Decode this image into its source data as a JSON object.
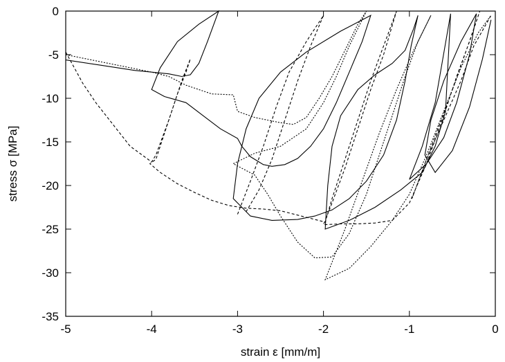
{
  "chart_data": {
    "type": "line",
    "title": "",
    "xlabel": "strain ε [mm/m]",
    "ylabel": "stress σ [MPa]",
    "xlim": [
      -5,
      0
    ],
    "ylim": [
      -35,
      0
    ],
    "xticks": [
      -5,
      -4,
      -3,
      -2,
      -1,
      0
    ],
    "yticks": [
      0,
      -5,
      -10,
      -15,
      -20,
      -25,
      -30,
      -35
    ],
    "grid": false,
    "legend": "none",
    "series": [
      {
        "style": "solid",
        "values": [
          [
            -5.0,
            -5.6
          ],
          [
            -4.6,
            -6.2
          ],
          [
            -4.2,
            -6.8
          ],
          [
            -3.8,
            -7.2
          ],
          [
            -3.65,
            -7.5
          ],
          [
            -3.55,
            -7.3
          ],
          [
            -3.45,
            -6.0
          ],
          [
            -3.35,
            -3.5
          ],
          [
            -3.22,
            0.0
          ],
          [
            -3.45,
            -1.5
          ],
          [
            -3.7,
            -3.5
          ],
          [
            -3.9,
            -6.5
          ],
          [
            -4.0,
            -9.0
          ],
          [
            -3.85,
            -9.8
          ],
          [
            -3.6,
            -10.5
          ],
          [
            -3.4,
            -12.0
          ],
          [
            -3.2,
            -13.5
          ],
          [
            -3.0,
            -14.6
          ],
          [
            -2.95,
            -15.5
          ],
          [
            -2.85,
            -16.7
          ],
          [
            -2.7,
            -17.6
          ],
          [
            -2.6,
            -17.8
          ],
          [
            -2.45,
            -17.6
          ],
          [
            -2.3,
            -16.9
          ],
          [
            -2.15,
            -15.5
          ],
          [
            -2.0,
            -13.5
          ],
          [
            -1.85,
            -10.5
          ],
          [
            -1.7,
            -7.0
          ],
          [
            -1.55,
            -3.5
          ],
          [
            -1.45,
            -0.5
          ],
          [
            -1.8,
            -2.3
          ],
          [
            -2.2,
            -4.7
          ],
          [
            -2.5,
            -7.0
          ],
          [
            -2.75,
            -10.0
          ],
          [
            -2.9,
            -13.5
          ],
          [
            -3.0,
            -17.5
          ],
          [
            -3.05,
            -21.5
          ],
          [
            -2.95,
            -22.5
          ],
          [
            -2.85,
            -23.5
          ],
          [
            -2.6,
            -24.0
          ],
          [
            -2.3,
            -23.9
          ],
          [
            -2.1,
            -23.5
          ],
          [
            -1.9,
            -22.8
          ],
          [
            -1.7,
            -21.5
          ],
          [
            -1.5,
            -19.5
          ],
          [
            -1.3,
            -16.5
          ],
          [
            -1.15,
            -12.5
          ],
          [
            -1.05,
            -8.0
          ],
          [
            -0.98,
            -4.0
          ],
          [
            -0.9,
            -0.5
          ],
          [
            -0.95,
            -2.0
          ],
          [
            -1.05,
            -4.5
          ],
          [
            -1.2,
            -6.0
          ],
          [
            -1.4,
            -7.3
          ],
          [
            -1.6,
            -9.0
          ],
          [
            -1.8,
            -12.0
          ],
          [
            -1.9,
            -15.5
          ],
          [
            -1.95,
            -20.0
          ],
          [
            -1.98,
            -25.0
          ],
          [
            -1.7,
            -24.0
          ],
          [
            -1.4,
            -22.5
          ],
          [
            -1.1,
            -20.5
          ],
          [
            -0.85,
            -18.5
          ],
          [
            -0.7,
            -15.5
          ],
          [
            -0.58,
            -11.5
          ],
          [
            -0.52,
            -0.3
          ],
          [
            -0.7,
            -10.5
          ],
          [
            -0.85,
            -15.5
          ],
          [
            -1.0,
            -19.3
          ],
          [
            -0.8,
            -17.5
          ],
          [
            -0.6,
            -14.5
          ],
          [
            -0.45,
            -10.5
          ],
          [
            -0.3,
            -5.0
          ],
          [
            -0.22,
            -0.3
          ],
          [
            -0.4,
            -3.5
          ],
          [
            -0.6,
            -8.0
          ],
          [
            -0.75,
            -12.5
          ],
          [
            -0.82,
            -16.5
          ],
          [
            -0.7,
            -18.5
          ],
          [
            -0.5,
            -16.0
          ],
          [
            -0.3,
            -11.0
          ],
          [
            -0.15,
            -5.5
          ],
          [
            -0.05,
            -1.0
          ]
        ]
      },
      {
        "style": "dashed",
        "values": [
          [
            -5.0,
            -4.7
          ],
          [
            -4.9,
            -6.5
          ],
          [
            -4.8,
            -8.3
          ],
          [
            -4.65,
            -10.5
          ],
          [
            -4.45,
            -13.0
          ],
          [
            -4.25,
            -15.5
          ],
          [
            -4.0,
            -17.3
          ],
          [
            -3.95,
            -16.5
          ],
          [
            -3.8,
            -12.5
          ],
          [
            -3.7,
            -9.5
          ],
          [
            -3.6,
            -7.0
          ],
          [
            -3.55,
            -5.5
          ],
          [
            -3.65,
            -8.0
          ],
          [
            -3.75,
            -11.0
          ],
          [
            -3.85,
            -14.0
          ],
          [
            -3.95,
            -17.0
          ],
          [
            -4.02,
            -17.5
          ],
          [
            -3.9,
            -18.5
          ],
          [
            -3.7,
            -19.8
          ],
          [
            -3.5,
            -20.8
          ],
          [
            -3.3,
            -21.7
          ],
          [
            -3.1,
            -22.3
          ],
          [
            -2.9,
            -22.6
          ],
          [
            -2.7,
            -22.7
          ],
          [
            -2.5,
            -22.9
          ],
          [
            -2.3,
            -23.4
          ],
          [
            -2.1,
            -23.9
          ],
          [
            -1.98,
            -24.2
          ],
          [
            -1.9,
            -21.5
          ],
          [
            -1.75,
            -17.0
          ],
          [
            -1.6,
            -12.5
          ],
          [
            -1.45,
            -8.0
          ],
          [
            -1.3,
            -4.0
          ],
          [
            -1.15,
            0.0
          ],
          [
            -1.3,
            -5.0
          ],
          [
            -1.45,
            -9.0
          ],
          [
            -1.6,
            -13.5
          ],
          [
            -1.75,
            -18.0
          ],
          [
            -1.9,
            -22.0
          ],
          [
            -2.0,
            -24.5
          ],
          [
            -1.8,
            -24.4
          ],
          [
            -1.6,
            -24.4
          ],
          [
            -1.4,
            -24.3
          ],
          [
            -1.2,
            -24.0
          ],
          [
            -1.0,
            -22.0
          ],
          [
            -0.8,
            -17.5
          ],
          [
            -0.6,
            -12.0
          ],
          [
            -0.45,
            -7.5
          ],
          [
            -0.3,
            -3.5
          ],
          [
            -0.18,
            0.0
          ],
          [
            -0.32,
            -4.0
          ],
          [
            -0.48,
            -8.5
          ],
          [
            -0.65,
            -13.0
          ],
          [
            -0.82,
            -17.5
          ],
          [
            -0.97,
            -21.5
          ],
          [
            -0.8,
            -17.0
          ],
          [
            -0.6,
            -12.5
          ],
          [
            -0.4,
            -8.0
          ],
          [
            -0.25,
            -4.0
          ],
          [
            -0.05,
            -0.5
          ]
        ]
      },
      {
        "style": "dashed",
        "values": [
          [
            -3.0,
            -23.3
          ],
          [
            -2.85,
            -19.5
          ],
          [
            -2.7,
            -15.5
          ],
          [
            -2.55,
            -11.0
          ],
          [
            -2.4,
            -7.0
          ],
          [
            -2.2,
            -3.5
          ],
          [
            -2.0,
            -0.5
          ],
          [
            -2.15,
            -4.0
          ],
          [
            -2.3,
            -8.0
          ],
          [
            -2.45,
            -12.5
          ],
          [
            -2.6,
            -17.0
          ],
          [
            -2.75,
            -20.5
          ],
          [
            -2.9,
            -23.0
          ]
        ]
      },
      {
        "style": "dotted",
        "values": [
          [
            -5.0,
            -5.0
          ],
          [
            -4.6,
            -5.8
          ],
          [
            -4.3,
            -6.4
          ],
          [
            -4.0,
            -7.0
          ],
          [
            -3.8,
            -7.5
          ],
          [
            -3.6,
            -8.5
          ],
          [
            -3.3,
            -9.5
          ],
          [
            -3.05,
            -9.6
          ],
          [
            -3.0,
            -11.5
          ],
          [
            -2.8,
            -12.2
          ],
          [
            -2.5,
            -12.8
          ],
          [
            -2.35,
            -13.0
          ],
          [
            -2.2,
            -12.2
          ],
          [
            -2.05,
            -10.0
          ],
          [
            -1.9,
            -7.5
          ],
          [
            -1.75,
            -4.5
          ],
          [
            -1.6,
            -1.5
          ],
          [
            -1.5,
            0.0
          ],
          [
            -1.7,
            -4.0
          ],
          [
            -1.85,
            -7.5
          ],
          [
            -2.0,
            -10.5
          ],
          [
            -2.2,
            -13.5
          ],
          [
            -2.5,
            -15.5
          ],
          [
            -2.8,
            -16.3
          ],
          [
            -3.05,
            -17.5
          ],
          [
            -2.8,
            -18.8
          ],
          [
            -2.65,
            -21.0
          ],
          [
            -2.5,
            -23.5
          ],
          [
            -2.3,
            -26.5
          ],
          [
            -2.1,
            -28.3
          ],
          [
            -1.9,
            -28.2
          ],
          [
            -1.7,
            -25.5
          ],
          [
            -1.5,
            -21.0
          ],
          [
            -1.35,
            -16.5
          ],
          [
            -1.2,
            -12.0
          ],
          [
            -1.05,
            -7.5
          ],
          [
            -0.9,
            -3.5
          ],
          [
            -0.75,
            -0.5
          ],
          [
            -0.95,
            -4.5
          ],
          [
            -1.15,
            -9.0
          ],
          [
            -1.35,
            -14.0
          ],
          [
            -1.55,
            -19.5
          ],
          [
            -1.75,
            -25.0
          ],
          [
            -1.98,
            -30.8
          ],
          [
            -1.7,
            -29.5
          ],
          [
            -1.45,
            -27.0
          ],
          [
            -1.2,
            -24.0
          ],
          [
            -1.0,
            -21.0
          ],
          [
            -0.8,
            -16.5
          ],
          [
            -0.6,
            -11.5
          ],
          [
            -0.4,
            -6.5
          ],
          [
            -0.2,
            -2.5
          ],
          [
            -0.05,
            -0.5
          ]
        ]
      }
    ]
  }
}
